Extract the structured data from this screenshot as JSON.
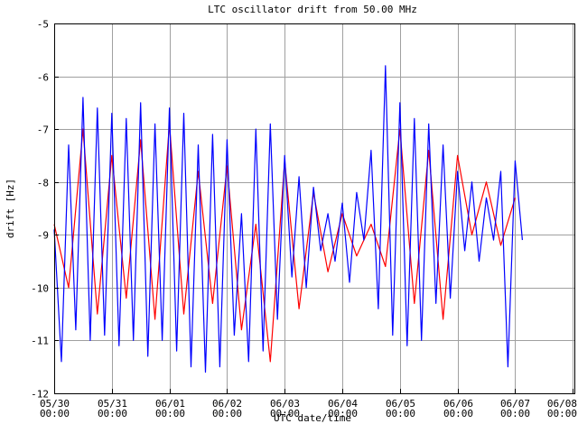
{
  "chart_data": {
    "type": "line",
    "title": "LTC oscillator drift from 50.00 MHz",
    "xlabel": "UTC date/time",
    "ylabel": "drift [Hz]",
    "grid": true,
    "ylim": [
      -12,
      -5
    ],
    "yticks": [
      -12,
      -11,
      -10,
      -9,
      -8,
      -7,
      -6,
      -5
    ],
    "ytick_labels": [
      "-12",
      "-11",
      "-10",
      "-9",
      "-8",
      "-7",
      "-6",
      "-5"
    ],
    "xticks": [
      {
        "date": "05/30",
        "time": "00:00"
      },
      {
        "date": "05/31",
        "time": "00:00"
      },
      {
        "date": "06/01",
        "time": "00:00"
      },
      {
        "date": "06/02",
        "time": "00:00"
      },
      {
        "date": "06/03",
        "time": "00:00"
      },
      {
        "date": "06/04",
        "time": "00:00"
      },
      {
        "date": "06/05",
        "time": "00:00"
      },
      {
        "date": "06/06",
        "time": "00:00"
      },
      {
        "date": "06/07",
        "time": "00:00"
      },
      {
        "date": "06/08",
        "time": "00:00"
      }
    ],
    "series": [
      {
        "color": "#ff0000",
        "x": [
          "05/30 00:00",
          "05/30 06:00",
          "05/30 12:00",
          "05/30 18:00",
          "05/31 00:00",
          "05/31 06:00",
          "05/31 12:00",
          "05/31 18:00",
          "06/01 00:00",
          "06/01 06:00",
          "06/01 12:00",
          "06/01 18:00",
          "06/02 00:00",
          "06/02 06:00",
          "06/02 12:00",
          "06/02 18:00",
          "06/03 00:00",
          "06/03 06:00",
          "06/03 12:00",
          "06/03 18:00",
          "06/04 00:00",
          "06/04 06:00",
          "06/04 12:00",
          "06/04 18:00",
          "06/05 00:00",
          "06/05 06:00",
          "06/05 12:00",
          "06/05 18:00",
          "06/06 00:00",
          "06/06 06:00",
          "06/06 12:00",
          "06/06 18:00",
          "06/07 00:00"
        ],
        "y": [
          -8.8,
          -10.0,
          -7.0,
          -10.5,
          -7.5,
          -10.2,
          -7.2,
          -10.6,
          -6.9,
          -10.5,
          -7.8,
          -10.3,
          -7.7,
          -10.8,
          -8.8,
          -11.4,
          -7.6,
          -10.4,
          -8.2,
          -9.7,
          -8.6,
          -9.4,
          -8.8,
          -9.6,
          -7.0,
          -10.3,
          -7.4,
          -10.6,
          -7.5,
          -9.0,
          -8.0,
          -9.2,
          -8.3
        ]
      },
      {
        "color": "#0000ff",
        "x": [
          "05/30 00:00",
          "05/30 03:00",
          "05/30 06:00",
          "05/30 09:00",
          "05/30 12:00",
          "05/30 15:00",
          "05/30 18:00",
          "05/30 21:00",
          "05/31 00:00",
          "05/31 03:00",
          "05/31 06:00",
          "05/31 09:00",
          "05/31 12:00",
          "05/31 15:00",
          "05/31 18:00",
          "05/31 21:00",
          "06/01 00:00",
          "06/01 03:00",
          "06/01 06:00",
          "06/01 09:00",
          "06/01 12:00",
          "06/01 15:00",
          "06/01 18:00",
          "06/01 21:00",
          "06/02 00:00",
          "06/02 03:00",
          "06/02 06:00",
          "06/02 09:00",
          "06/02 12:00",
          "06/02 15:00",
          "06/02 18:00",
          "06/02 21:00",
          "06/03 00:00",
          "06/03 03:00",
          "06/03 06:00",
          "06/03 09:00",
          "06/03 12:00",
          "06/03 15:00",
          "06/03 18:00",
          "06/03 21:00",
          "06/04 00:00",
          "06/04 03:00",
          "06/04 06:00",
          "06/04 09:00",
          "06/04 12:00",
          "06/04 15:00",
          "06/04 18:00",
          "06/04 21:00",
          "06/05 00:00",
          "06/05 03:00",
          "06/05 06:00",
          "06/05 09:00",
          "06/05 12:00",
          "06/05 15:00",
          "06/05 18:00",
          "06/05 21:00",
          "06/06 00:00",
          "06/06 03:00",
          "06/06 06:00",
          "06/06 09:00",
          "06/06 12:00",
          "06/06 15:00",
          "06/06 18:00",
          "06/06 21:00",
          "06/07 00:00",
          "06/07 03:00"
        ],
        "y": [
          -8.9,
          -11.4,
          -7.3,
          -10.8,
          -6.4,
          -11.0,
          -6.6,
          -10.9,
          -6.7,
          -11.1,
          -6.8,
          -11.0,
          -6.5,
          -11.3,
          -6.9,
          -11.0,
          -6.6,
          -11.2,
          -6.7,
          -11.5,
          -7.3,
          -11.6,
          -7.1,
          -11.5,
          -7.2,
          -10.9,
          -8.6,
          -11.4,
          -7.0,
          -11.2,
          -6.9,
          -10.6,
          -7.5,
          -9.8,
          -7.9,
          -10.0,
          -8.1,
          -9.3,
          -8.6,
          -9.5,
          -8.4,
          -9.9,
          -8.2,
          -9.1,
          -7.4,
          -10.4,
          -5.8,
          -10.9,
          -6.5,
          -11.1,
          -6.8,
          -11.0,
          -6.9,
          -10.3,
          -7.3,
          -10.2,
          -7.8,
          -9.3,
          -8.0,
          -9.5,
          -8.3,
          -9.1,
          -7.8,
          -11.5,
          -7.6,
          -9.1
        ]
      }
    ]
  }
}
